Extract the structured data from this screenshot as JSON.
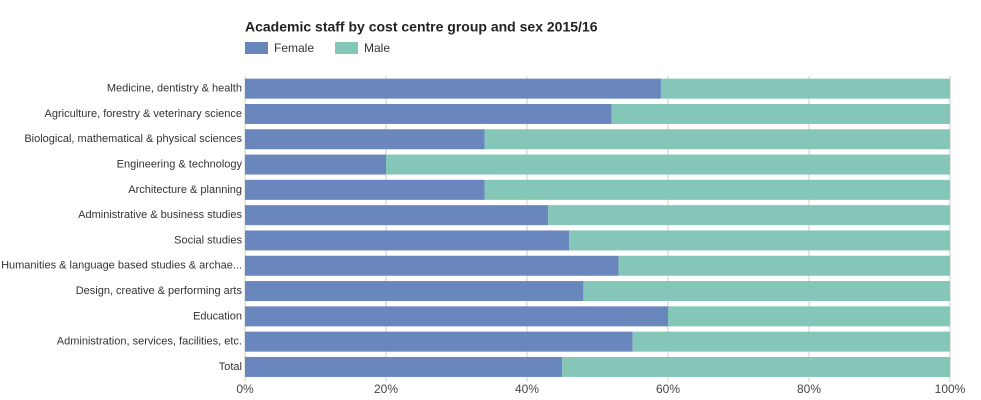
{
  "chart_data": {
    "type": "stacked_bar",
    "orientation": "horizontal",
    "title": "Academic staff by cost centre group and sex 2015/16",
    "categories": [
      "Medicine, dentistry & health",
      "Agriculture, forestry & veterinary science",
      "Biological, mathematical & physical sciences",
      "Engineering & technology",
      "Architecture & planning",
      "Administrative & business studies",
      "Social studies",
      "Humanities & language based studies & archae...",
      "Design, creative & performing arts",
      "Education",
      "Administration, services, facilities, etc.",
      "Total"
    ],
    "series": [
      {
        "name": "Female",
        "color": "#6a87bd",
        "values": [
          59,
          52,
          34,
          20,
          34,
          43,
          46,
          53,
          48,
          60,
          55,
          45
        ]
      },
      {
        "name": "Male",
        "color": "#84c7b8",
        "values": [
          41,
          48,
          66,
          80,
          66,
          57,
          54,
          47,
          52,
          40,
          45,
          55
        ]
      }
    ],
    "xlim": [
      0,
      100
    ],
    "xticks": [
      {
        "value": 0,
        "label": "0%"
      },
      {
        "value": 20,
        "label": "20%"
      },
      {
        "value": 40,
        "label": "40%"
      },
      {
        "value": 60,
        "label": "60%"
      },
      {
        "value": 80,
        "label": "80%"
      },
      {
        "value": 100,
        "label": "100%"
      }
    ],
    "grid": true,
    "legend": "top-left"
  }
}
